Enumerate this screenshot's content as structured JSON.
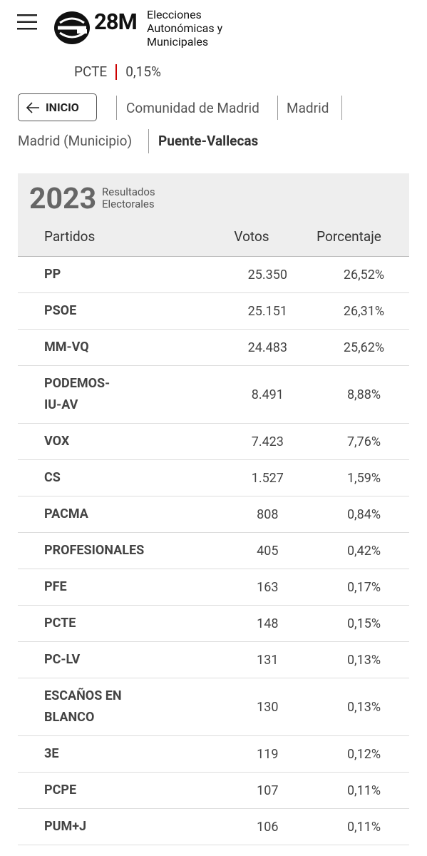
{
  "header": {
    "brand": "28M",
    "brand_subtitle": [
      "Elecciones",
      "Autonómicas y",
      "Municipales"
    ]
  },
  "ticker": {
    "party": "PCTE",
    "percent": "0,15%"
  },
  "breadcrumb": {
    "back_button": "INICIO",
    "items": [
      "Comunidad de Madrid",
      "Madrid",
      "Madrid (Municipio)",
      "Puente-Vallecas"
    ]
  },
  "results": {
    "year": "2023",
    "subtitle": [
      "Resultados",
      "Electorales"
    ],
    "columns": [
      "Partidos",
      "Votos",
      "Porcentaje"
    ],
    "rows": [
      [
        [
          "PP"
        ],
        "25.350",
        "26,52%"
      ],
      [
        [
          "PSOE"
        ],
        "25.151",
        "26,31%"
      ],
      [
        [
          "MM-VQ"
        ],
        "24.483",
        "25,62%"
      ],
      [
        [
          "PODEMOS-",
          "IU-AV"
        ],
        "8.491",
        "8,88%"
      ],
      [
        [
          "VOX"
        ],
        "7.423",
        "7,76%"
      ],
      [
        [
          "CS"
        ],
        "1.527",
        "1,59%"
      ],
      [
        [
          "PACMA"
        ],
        "808",
        "0,84%"
      ],
      [
        [
          "PROFESIONALES"
        ],
        "405",
        "0,42%"
      ],
      [
        [
          "PFE"
        ],
        "163",
        "0,17%"
      ],
      [
        [
          "PCTE"
        ],
        "148",
        "0,15%"
      ],
      [
        [
          "PC-LV"
        ],
        "131",
        "0,13%"
      ],
      [
        [
          "ESCAÑOS EN",
          "BLANCO"
        ],
        "130",
        "0,13%"
      ],
      [
        [
          "3E"
        ],
        "119",
        "0,12%"
      ],
      [
        [
          "PCPE"
        ],
        "107",
        "0,11%"
      ],
      [
        [
          "PUM+J"
        ],
        "106",
        "0,11%"
      ]
    ]
  }
}
